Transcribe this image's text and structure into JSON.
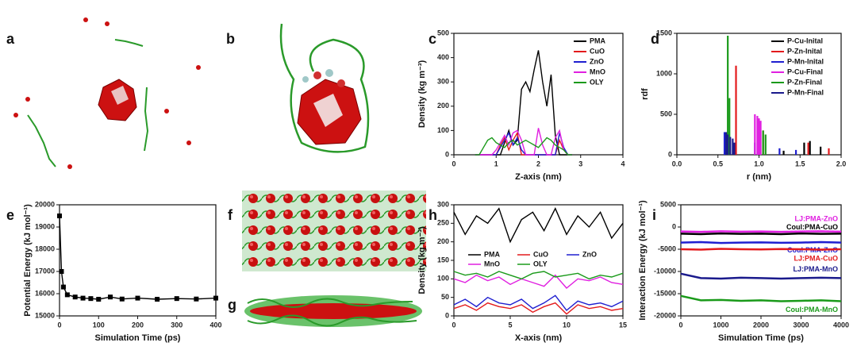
{
  "panel_labels": [
    "a",
    "b",
    "c",
    "d",
    "e",
    "f",
    "g",
    "h",
    "i"
  ],
  "chart_data": [
    {
      "type": "line",
      "xlabel": "Z-axis (nm)",
      "ylabel": "Density (kg m⁻³)",
      "x": [
        0.5,
        0.6,
        0.7,
        0.8,
        0.9,
        1.0,
        1.1,
        1.2,
        1.3,
        1.4,
        1.5,
        1.6,
        1.7,
        1.8,
        1.9,
        2.0,
        2.1,
        2.2,
        2.3,
        2.4,
        2.5,
        2.6,
        2.7,
        2.8
      ],
      "xlim": [
        0,
        4
      ],
      "xticks": [
        0,
        1,
        2,
        3,
        4
      ],
      "ylim": [
        0,
        500
      ],
      "yticks": [
        0,
        100,
        200,
        300,
        400,
        500
      ],
      "legend": "upper right",
      "series": [
        {
          "name": "PMA",
          "color": "#000000",
          "values": [
            0,
            0,
            0,
            0,
            0,
            0,
            0,
            50,
            100,
            40,
            60,
            270,
            300,
            260,
            350,
            430,
            300,
            200,
            330,
            80,
            0,
            0,
            0,
            0
          ]
        },
        {
          "name": "CuO",
          "color": "#e31a1c",
          "values": [
            0,
            0,
            0,
            0,
            0,
            0,
            40,
            70,
            20,
            60,
            90,
            0,
            0,
            0,
            0,
            0,
            0,
            0,
            0,
            0,
            60,
            20,
            0,
            0
          ]
        },
        {
          "name": "ZnO",
          "color": "#1f1fd0",
          "values": [
            0,
            0,
            0,
            0,
            0,
            0,
            30,
            60,
            90,
            40,
            70,
            20,
            0,
            0,
            0,
            0,
            0,
            0,
            0,
            0,
            90,
            30,
            0,
            0
          ]
        },
        {
          "name": "MnO",
          "color": "#e020e0",
          "values": [
            0,
            0,
            0,
            0,
            0,
            20,
            50,
            80,
            40,
            90,
            100,
            60,
            0,
            0,
            0,
            110,
            40,
            0,
            0,
            70,
            100,
            20,
            0,
            0
          ]
        },
        {
          "name": "OLY",
          "color": "#1a9a1a",
          "values": [
            0,
            0,
            30,
            60,
            70,
            50,
            40,
            30,
            50,
            60,
            40,
            50,
            60,
            50,
            40,
            30,
            50,
            70,
            60,
            40,
            30,
            20,
            0,
            0
          ]
        }
      ]
    },
    {
      "type": "stem",
      "xlabel": "r (nm)",
      "ylabel": "rdf",
      "xlim": [
        0,
        2
      ],
      "xticks": [
        {
          "value": 0,
          "label": "0.0"
        },
        {
          "value": 0.5,
          "label": "0.5"
        },
        {
          "value": 1,
          "label": "1.0"
        },
        {
          "value": 1.5,
          "label": "1.5"
        },
        {
          "value": 2,
          "label": "2.0"
        }
      ],
      "ylim": [
        0,
        1500
      ],
      "yticks": [
        0,
        500,
        1000,
        1500
      ],
      "legend": "upper right",
      "series": [
        {
          "name": "P-Cu-Inital",
          "color": "#000000",
          "x": [
            1.3,
            1.55,
            1.62,
            1.75
          ],
          "values": [
            50,
            150,
            170,
            100
          ]
        },
        {
          "name": "P-Zn-Inital",
          "color": "#e31a1c",
          "x": [
            0.72,
            1.05,
            1.6,
            1.85
          ],
          "values": [
            1100,
            300,
            150,
            80
          ]
        },
        {
          "name": "P-Mn-Inital",
          "color": "#1f1fd0",
          "x": [
            0.58,
            0.95,
            1.25,
            1.45
          ],
          "values": [
            280,
            150,
            80,
            60
          ]
        },
        {
          "name": "P-Cu-Final",
          "color": "#e020e0",
          "x": [
            0.95,
            0.98,
            1.0,
            1.02
          ],
          "values": [
            500,
            480,
            450,
            420
          ]
        },
        {
          "name": "P-Zn-Final",
          "color": "#1a9a1a",
          "x": [
            0.62,
            0.64,
            1.05,
            1.08
          ],
          "values": [
            1470,
            700,
            300,
            250
          ]
        },
        {
          "name": "P-Mn-Final",
          "color": "#1a1a8c",
          "x": [
            0.6,
            0.62,
            0.65,
            0.68,
            0.7
          ],
          "values": [
            280,
            250,
            220,
            200,
            150
          ]
        }
      ]
    },
    {
      "type": "line",
      "marker": "square",
      "xlabel": "Simulation Time (ps)",
      "ylabel": "Potential Energy (kJ mol⁻¹)",
      "x": [
        0,
        5,
        10,
        20,
        40,
        60,
        80,
        100,
        130,
        160,
        200,
        250,
        300,
        350,
        400
      ],
      "xlim": [
        0,
        400
      ],
      "xticks": [
        0,
        100,
        200,
        300,
        400
      ],
      "ylim": [
        15000,
        20000
      ],
      "yticks": [
        15000,
        16000,
        17000,
        18000,
        19000,
        20000
      ],
      "series": [
        {
          "color": "#000000",
          "values": [
            19500,
            17000,
            16300,
            15950,
            15850,
            15800,
            15780,
            15750,
            15850,
            15760,
            15800,
            15750,
            15780,
            15760,
            15800
          ]
        }
      ]
    },
    {
      "type": "line",
      "xlabel": "X-axis (nm)",
      "ylabel": "Density (kg m⁻³)",
      "x": [
        0,
        1,
        2,
        3,
        4,
        5,
        6,
        7,
        8,
        9,
        10,
        11,
        12,
        13,
        14,
        15
      ],
      "xlim": [
        0,
        15
      ],
      "xticks": [
        0,
        5,
        10,
        15
      ],
      "ylim": [
        0,
        300
      ],
      "yticks": [
        0,
        50,
        100,
        150,
        200,
        250,
        300
      ],
      "legend": "center",
      "series": [
        {
          "name": "PMA",
          "color": "#000000",
          "values": [
            280,
            220,
            270,
            250,
            290,
            200,
            260,
            280,
            230,
            290,
            220,
            270,
            240,
            280,
            210,
            250
          ]
        },
        {
          "name": "CuO",
          "color": "#e31a1c",
          "values": [
            20,
            30,
            15,
            35,
            25,
            20,
            30,
            10,
            25,
            35,
            5,
            30,
            20,
            25,
            15,
            20
          ]
        },
        {
          "name": "ZnO",
          "color": "#1f1fd0",
          "values": [
            30,
            45,
            25,
            50,
            35,
            30,
            45,
            20,
            35,
            55,
            15,
            40,
            30,
            35,
            25,
            40
          ]
        },
        {
          "name": "MnO",
          "color": "#e020e0",
          "values": [
            100,
            90,
            110,
            95,
            105,
            85,
            100,
            90,
            80,
            110,
            75,
            100,
            95,
            105,
            90,
            85
          ]
        },
        {
          "name": "OLY",
          "color": "#1a9a1a",
          "values": [
            120,
            110,
            115,
            105,
            120,
            110,
            100,
            115,
            120,
            105,
            110,
            115,
            100,
            110,
            105,
            115
          ]
        }
      ]
    },
    {
      "type": "line",
      "xlabel": "Simulation Time (ps)",
      "ylabel": "Interaction Energy (kJ mol⁻¹)",
      "x": [
        0,
        500,
        1000,
        1500,
        2000,
        2500,
        3000,
        3500,
        4000
      ],
      "xlim": [
        0,
        4000
      ],
      "xticks": [
        0,
        1000,
        2000,
        3000,
        4000
      ],
      "ylim": [
        -20000,
        5000
      ],
      "yticks": [
        -20000,
        -15000,
        -10000,
        -5000,
        0,
        5000
      ],
      "legend": "inline",
      "series": [
        {
          "name": "LJ:PMA-ZnO",
          "color": "#e020e0",
          "values": [
            -1000,
            -1100,
            -950,
            -1050,
            -1000,
            -1100,
            -1000,
            -950,
            -1050
          ]
        },
        {
          "name": "Coul:PMA-CuO",
          "color": "#000000",
          "values": [
            -1500,
            -1600,
            -1450,
            -1550,
            -1500,
            -1600,
            -1450,
            -1550,
            -1500
          ]
        },
        {
          "name": "Coul:PMA-ZnO",
          "color": "#1f1fd0",
          "values": [
            -3500,
            -3400,
            -3600,
            -3500,
            -3450,
            -3550,
            -3500,
            -3400,
            -3500
          ]
        },
        {
          "name": "LJ:PMA-CuO",
          "color": "#e31a1c",
          "values": [
            -5000,
            -5100,
            -4900,
            -5000,
            -5050,
            -4950,
            -5000,
            -5100,
            -5000
          ]
        },
        {
          "name": "LJ:PMA-MnO",
          "color": "#1a1a8c",
          "values": [
            -10500,
            -11500,
            -11600,
            -11400,
            -11500,
            -11600,
            -11500,
            -11400,
            -11500
          ]
        },
        {
          "name": "Coul:PMA-MnO",
          "color": "#1a9a1a",
          "values": [
            -15500,
            -16500,
            -16400,
            -16600,
            -16500,
            -16700,
            -16600,
            -16500,
            -16700
          ]
        }
      ]
    }
  ]
}
